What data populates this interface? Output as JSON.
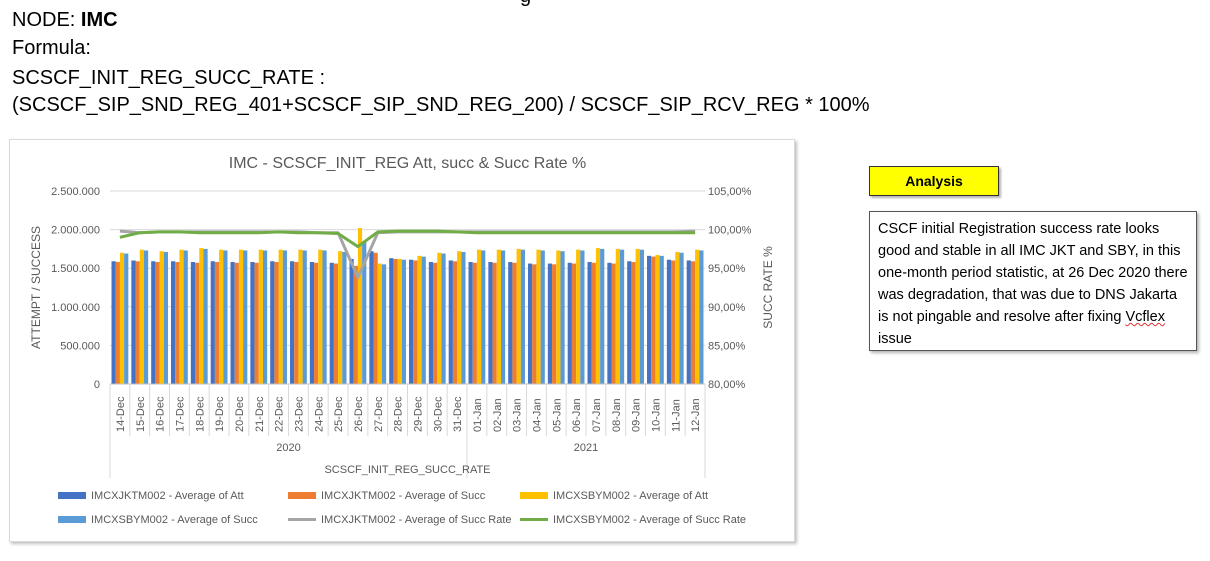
{
  "header": {
    "cut_text": "g",
    "node_label": "NODE: ",
    "node_value": "IMC",
    "formula_label": "Formula:",
    "formula_name": "SCSCF_INIT_REG_SUCC_RATE :",
    "formula_expr": "(SCSCF_SIP_SND_REG_401+SCSCF_SIP_SND_REG_200) / SCSCF_SIP_RCV_REG * 100%"
  },
  "analysis": {
    "label": "Analysis",
    "text_before": "CSCF initial Registration success rate looks good and stable in all IMC JKT and SBY, in this one-month period statistic, at 26 Dec 2020 there was degradation, that was due to DNS Jakarta is not pingable and resolve after fixing ",
    "text_underlined": "Vcflex",
    "text_after": " issue"
  },
  "chart_data": {
    "type": "bar",
    "title": "IMC - SCSCF_INIT_REG  Att, succ & Succ Rate %",
    "xlabel": "SCSCF_INIT_REG_SUCC_RATE",
    "ylabel": "ATTEMPT / SUCCESS",
    "y2label": "SUCC RATE %",
    "ylim": [
      0,
      2500000
    ],
    "y2lim": [
      80,
      105
    ],
    "y_ticks": [
      "0",
      "500.000",
      "1.000.000",
      "1.500.000",
      "2.000.000",
      "2.500.000"
    ],
    "y2_ticks": [
      "80,00%",
      "85,00%",
      "90,00%",
      "95,00%",
      "100,00%",
      "105,00%"
    ],
    "categories": [
      "14-Dec",
      "15-Dec",
      "16-Dec",
      "17-Dec",
      "18-Dec",
      "19-Dec",
      "20-Dec",
      "21-Dec",
      "22-Dec",
      "23-Dec",
      "24-Dec",
      "25-Dec",
      "26-Dec",
      "27-Dec",
      "28-Dec",
      "29-Dec",
      "30-Dec",
      "31-Dec",
      "01-Jan",
      "02-Jan",
      "03-Jan",
      "04-Jan",
      "05-Jan",
      "06-Jan",
      "07-Jan",
      "08-Jan",
      "09-Jan",
      "10-Jan",
      "11-Jan",
      "12-Jan"
    ],
    "groups": [
      {
        "label": "2020",
        "count": 18
      },
      {
        "label": "2021",
        "count": 12
      }
    ],
    "legend_position": "bottom",
    "grid": true,
    "series": [
      {
        "name": "IMCXJKTM002 - Average of Att",
        "kind": "bar",
        "axis": "left",
        "color": "#4472c4",
        "values": [
          1590000,
          1600000,
          1590000,
          1590000,
          1580000,
          1590000,
          1580000,
          1580000,
          1590000,
          1590000,
          1580000,
          1570000,
          1620000,
          1720000,
          1630000,
          1610000,
          1580000,
          1600000,
          1580000,
          1580000,
          1580000,
          1560000,
          1560000,
          1570000,
          1580000,
          1570000,
          1590000,
          1660000,
          1610000,
          1600000
        ]
      },
      {
        "name": "IMCXJKTM002 - Average of Succ",
        "kind": "bar",
        "axis": "left",
        "color": "#ed7d31",
        "values": [
          1580000,
          1590000,
          1580000,
          1580000,
          1570000,
          1580000,
          1570000,
          1570000,
          1580000,
          1580000,
          1570000,
          1560000,
          1530000,
          1700000,
          1620000,
          1600000,
          1570000,
          1590000,
          1570000,
          1570000,
          1570000,
          1550000,
          1550000,
          1560000,
          1570000,
          1560000,
          1580000,
          1650000,
          1600000,
          1590000
        ]
      },
      {
        "name": "IMCXSBYM002 - Average of Att",
        "kind": "bar",
        "axis": "left",
        "color": "#ffc000",
        "values": [
          1700000,
          1740000,
          1720000,
          1740000,
          1760000,
          1740000,
          1740000,
          1740000,
          1740000,
          1740000,
          1740000,
          1720000,
          2020000,
          1560000,
          1620000,
          1660000,
          1700000,
          1720000,
          1740000,
          1740000,
          1750000,
          1740000,
          1730000,
          1740000,
          1760000,
          1750000,
          1750000,
          1670000,
          1710000,
          1740000
        ]
      },
      {
        "name": "IMCXSBYM002 - Average of Succ",
        "kind": "bar",
        "axis": "left",
        "color": "#5b9bd5",
        "values": [
          1690000,
          1730000,
          1710000,
          1730000,
          1750000,
          1730000,
          1730000,
          1730000,
          1730000,
          1730000,
          1730000,
          1710000,
          1850000,
          1550000,
          1610000,
          1650000,
          1690000,
          1710000,
          1730000,
          1730000,
          1740000,
          1730000,
          1720000,
          1730000,
          1750000,
          1740000,
          1740000,
          1660000,
          1700000,
          1730000
        ]
      },
      {
        "name": "IMCXJKTM002 - Average of Succ Rate",
        "kind": "line",
        "axis": "right",
        "color": "#a5a5a5",
        "values": [
          99.8,
          99.6,
          99.7,
          99.7,
          99.7,
          99.7,
          99.7,
          99.7,
          99.7,
          99.7,
          99.6,
          99.6,
          93.8,
          99.6,
          99.7,
          99.7,
          99.7,
          99.7,
          99.7,
          99.7,
          99.7,
          99.7,
          99.7,
          99.7,
          99.7,
          99.7,
          99.7,
          99.7,
          99.7,
          99.8
        ]
      },
      {
        "name": "IMCXSBYM002 - Average of Succ Rate",
        "kind": "line",
        "axis": "right",
        "color": "#70ad47",
        "values": [
          99.0,
          99.6,
          99.7,
          99.7,
          99.6,
          99.6,
          99.6,
          99.6,
          99.7,
          99.6,
          99.6,
          99.5,
          97.8,
          99.7,
          99.8,
          99.8,
          99.8,
          99.7,
          99.6,
          99.6,
          99.6,
          99.6,
          99.6,
          99.6,
          99.6,
          99.6,
          99.6,
          99.6,
          99.6,
          99.6
        ]
      }
    ]
  }
}
